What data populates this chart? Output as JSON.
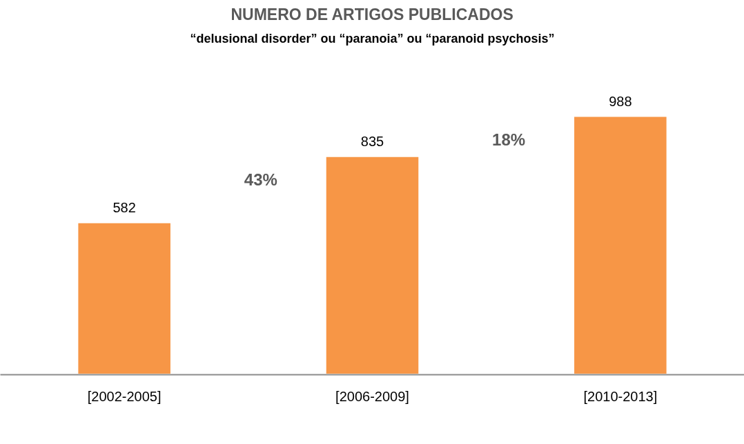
{
  "chart_data": {
    "type": "bar",
    "title": "NUMERO DE ARTIGOS PUBLICADOS",
    "subtitle": "“delusional disorder” ou “paranoia” ou “paranoid psychosis”",
    "categories": [
      "[2002-2005]",
      "[2006-2009]",
      "[2010-2013]"
    ],
    "values": [
      582,
      835,
      988
    ],
    "color": "#f79646",
    "data_labels": true,
    "annotations": [
      "43%",
      "18%"
    ]
  }
}
